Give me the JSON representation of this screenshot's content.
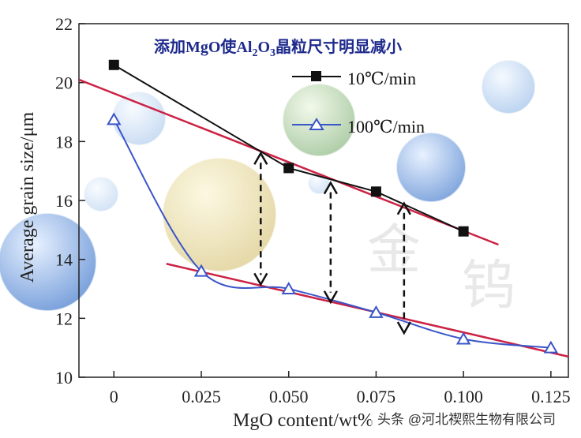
{
  "chart_data": {
    "type": "line",
    "title": "添加MgO使Al2O3晶粒尺寸明显减小",
    "title_parts": {
      "pre": "添加MgO使Al",
      "sub1": "2",
      "mid": "O",
      "sub2": "3",
      "post": "晶粒尺寸明显减小"
    },
    "xlabel": "MgO content/wt%",
    "ylabel": "Average grain size/μm",
    "xlim": [
      -0.01,
      0.13
    ],
    "ylim": [
      10,
      22
    ],
    "x_ticks": [
      0,
      0.025,
      0.05,
      0.075,
      0.1,
      0.125
    ],
    "x_tick_labels": [
      "0",
      "0.025",
      "0.050",
      "0.075",
      "0.100",
      "0.125"
    ],
    "y_ticks": [
      10,
      12,
      14,
      16,
      18,
      20,
      22
    ],
    "y_tick_labels": [
      "10",
      "12",
      "14",
      "16",
      "18",
      "20",
      "22"
    ],
    "series": [
      {
        "name": "10℃/min",
        "marker": "square",
        "color": "#111111",
        "x": [
          0,
          0.05,
          0.075,
          0.1
        ],
        "y": [
          20.6,
          17.1,
          16.3,
          14.95
        ]
      },
      {
        "name": "100℃/min",
        "marker": "triangle",
        "color": "#3a55c8",
        "x": [
          0,
          0.025,
          0.05,
          0.075,
          0.1,
          0.125
        ],
        "y": [
          18.75,
          13.6,
          13.0,
          12.2,
          11.3,
          11.0
        ]
      }
    ],
    "fit_lines": [
      {
        "color": "#cc2244",
        "x": [
          -0.01,
          0.11
        ],
        "y": [
          20.1,
          14.5
        ]
      },
      {
        "color": "#cc2244",
        "x": [
          0.015,
          0.13
        ],
        "y": [
          13.85,
          10.7
        ]
      }
    ],
    "arrows": [
      {
        "x": 0.042,
        "y_top": 17.6,
        "y_bottom": 13.15
      },
      {
        "x": 0.062,
        "y_top": 16.6,
        "y_bottom": 12.55
      },
      {
        "x": 0.083,
        "y_top": 15.9,
        "y_bottom": 11.5
      }
    ],
    "legend_position": "top-right"
  },
  "watermark": {
    "glyphs": [
      "金",
      "钨"
    ],
    "credit": "头条 @河北禊熙生物有限公司"
  },
  "colors": {
    "title": "#1e2a8c",
    "series1": "#111111",
    "series2": "#3a55c8",
    "fit": "#cc2244"
  }
}
